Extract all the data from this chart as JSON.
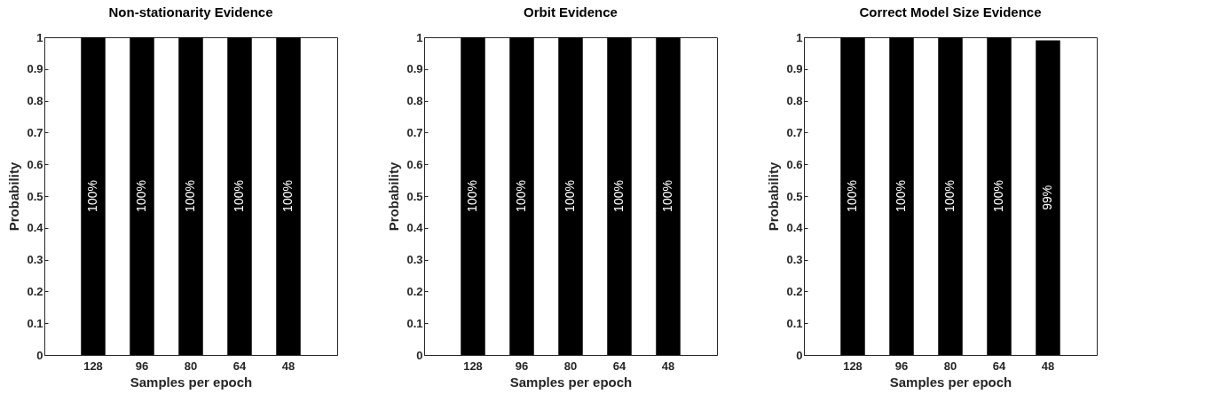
{
  "chart_data": [
    {
      "type": "bar",
      "title": "Non-stationarity Evidence",
      "xlabel": "Samples per epoch",
      "ylabel": "Probability",
      "categories": [
        "128",
        "96",
        "80",
        "64",
        "48"
      ],
      "values": [
        1,
        1,
        1,
        1,
        1
      ],
      "value_labels": [
        "100%",
        "100%",
        "100%",
        "100%",
        "100%"
      ],
      "color": "#000000",
      "ylim": [
        0,
        1
      ],
      "yticks": [
        0,
        0.1,
        0.2,
        0.3,
        0.4,
        0.5,
        0.6,
        0.7,
        0.8,
        0.9,
        1
      ],
      "grid": false
    },
    {
      "type": "bar",
      "title": "Orbit Evidence",
      "xlabel": "Samples per epoch",
      "ylabel": "Probability",
      "categories": [
        "128",
        "96",
        "80",
        "64",
        "48"
      ],
      "values": [
        1,
        1,
        1,
        1,
        1
      ],
      "value_labels": [
        "100%",
        "100%",
        "100%",
        "100%",
        "100%"
      ],
      "color": "#000000",
      "ylim": [
        0,
        1
      ],
      "yticks": [
        0,
        0.1,
        0.2,
        0.3,
        0.4,
        0.5,
        0.6,
        0.7,
        0.8,
        0.9,
        1
      ],
      "grid": false
    },
    {
      "type": "bar",
      "title": "Correct Model Size Evidence",
      "xlabel": "Samples per epoch",
      "ylabel": "Probability",
      "categories": [
        "128",
        "96",
        "80",
        "64",
        "48"
      ],
      "values": [
        1,
        1,
        1,
        1,
        0.99
      ],
      "value_labels": [
        "100%",
        "100%",
        "100%",
        "100%",
        "99%"
      ],
      "color": "#000000",
      "ylim": [
        0,
        1
      ],
      "yticks": [
        0,
        0.1,
        0.2,
        0.3,
        0.4,
        0.5,
        0.6,
        0.7,
        0.8,
        0.9,
        1
      ],
      "grid": false
    }
  ]
}
